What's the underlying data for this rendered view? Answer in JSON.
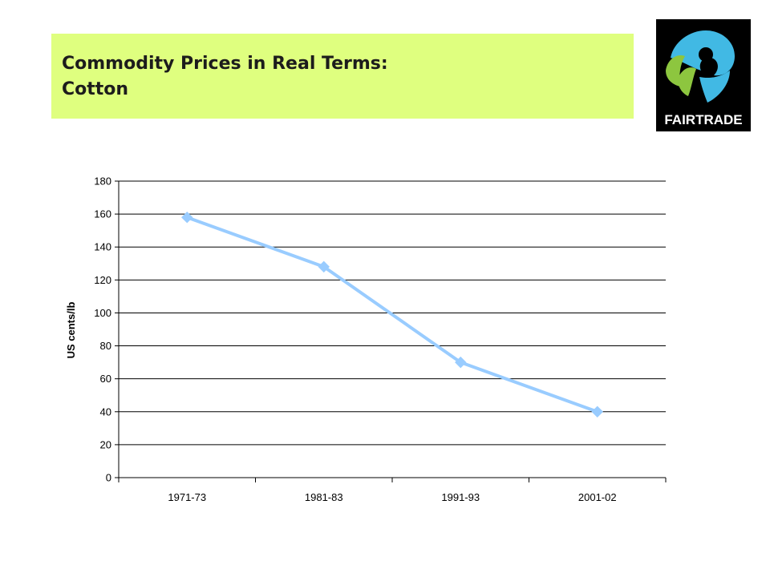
{
  "slide": {
    "title_line1": "Commodity Prices in Real Terms:",
    "title_line2": "Cotton",
    "title_bg": "#dfff7f"
  },
  "logo": {
    "text": "FAIRTRADE",
    "icon": "fairtrade-mark-icon",
    "colors": {
      "background": "#000000",
      "blue": "#41b9e4",
      "green": "#8dc63f",
      "text": "#ffffff"
    }
  },
  "chart_data": {
    "type": "line",
    "title": "",
    "xlabel": "",
    "ylabel": "US cents/lb",
    "categories": [
      "1971-73",
      "1981-83",
      "1991-93",
      "2001-02"
    ],
    "series": [
      {
        "values": [
          158,
          128,
          70,
          40
        ],
        "color": "#99ccff",
        "marker": "diamond"
      }
    ],
    "ylim": [
      0,
      180
    ],
    "yticks": [
      0,
      20,
      40,
      60,
      80,
      100,
      120,
      140,
      160,
      180
    ],
    "grid": true,
    "legend": "none"
  }
}
